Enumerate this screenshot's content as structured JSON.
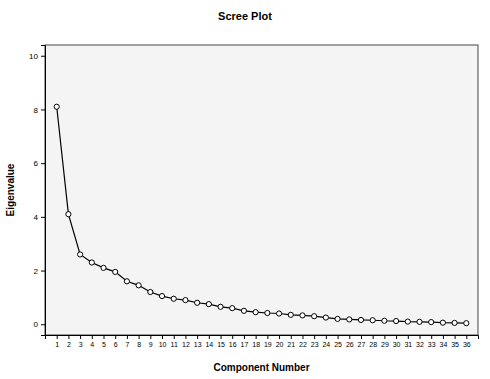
{
  "chart_data": {
    "type": "line",
    "title": "Scree Plot",
    "x_label": "Component Number",
    "y_label": "Eigenvalue",
    "x": [
      1,
      2,
      3,
      4,
      5,
      6,
      7,
      8,
      9,
      10,
      11,
      12,
      13,
      14,
      15,
      16,
      17,
      18,
      19,
      20,
      21,
      22,
      23,
      24,
      25,
      26,
      27,
      28,
      29,
      30,
      31,
      32,
      33,
      34,
      35,
      36
    ],
    "values": [
      8.1,
      4.1,
      2.6,
      2.3,
      2.1,
      1.95,
      1.6,
      1.45,
      1.2,
      1.05,
      0.95,
      0.9,
      0.8,
      0.75,
      0.65,
      0.6,
      0.5,
      0.45,
      0.42,
      0.4,
      0.35,
      0.33,
      0.3,
      0.25,
      0.2,
      0.18,
      0.16,
      0.15,
      0.13,
      0.12,
      0.1,
      0.09,
      0.08,
      0.06,
      0.05,
      0.04
    ],
    "xlim": [
      0,
      37
    ],
    "xticks": [
      1,
      2,
      3,
      4,
      5,
      6,
      7,
      8,
      9,
      10,
      11,
      12,
      13,
      14,
      15,
      16,
      17,
      18,
      19,
      20,
      21,
      22,
      23,
      24,
      25,
      26,
      27,
      28,
      29,
      30,
      31,
      32,
      33,
      34,
      35,
      36
    ],
    "ylim": [
      -0.4,
      10.4
    ],
    "yticks": [
      0,
      2,
      4,
      6,
      8,
      10
    ],
    "color": "#000000",
    "marker": "circle",
    "line_style": "solid",
    "grid": false
  }
}
